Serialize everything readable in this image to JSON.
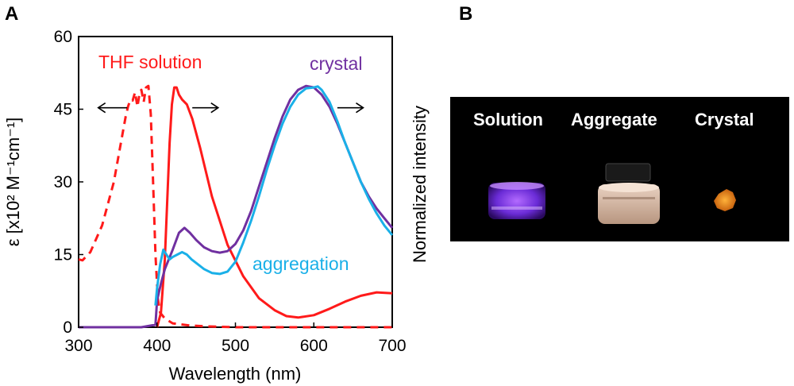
{
  "panels": {
    "a": "A",
    "b": "B"
  },
  "chart_data": {
    "type": "line",
    "xlabel": "Wavelength (nm)",
    "ylabel_left": "ε [x10² M⁻¹cm⁻¹]",
    "ylabel_right": "Normalized intensity",
    "xlim": [
      300,
      700
    ],
    "ylim": [
      0,
      60
    ],
    "xticks": [
      300,
      400,
      500,
      600,
      700
    ],
    "yticks": [
      0,
      15,
      30,
      45,
      60
    ],
    "grid": false,
    "series": [
      {
        "name": "THF solution",
        "style": "dashed",
        "axis": "left",
        "color": "#ff1a1a",
        "x": [
          300,
          305,
          315,
          330,
          345,
          355,
          360,
          363,
          366,
          369,
          372,
          375,
          378,
          380,
          383,
          386,
          389,
          392,
          395,
          398,
          401,
          404,
          410,
          420,
          440,
          460,
          480,
          500,
          700
        ],
        "y": [
          14,
          13.8,
          15.5,
          21,
          30,
          39,
          43.5,
          45.5,
          47,
          46.8,
          48.5,
          45.5,
          48.5,
          49,
          46.5,
          49.5,
          49.8,
          44,
          30,
          15,
          6,
          3,
          1.8,
          0.8,
          0.4,
          0.2,
          0.1,
          0,
          0
        ]
      },
      {
        "name": "THF solution",
        "style": "solid",
        "axis": "right",
        "color": "#ff1a1a",
        "x": [
          400,
          405,
          410,
          413,
          416,
          419,
          422,
          425,
          428,
          432,
          438,
          445,
          455,
          470,
          490,
          510,
          530,
          550,
          565,
          580,
          600,
          620,
          640,
          660,
          680,
          700
        ],
        "y": [
          0,
          3,
          14,
          26,
          38,
          46,
          49.5,
          49.5,
          48,
          47,
          46,
          43,
          37,
          27,
          17,
          10.5,
          6,
          3.5,
          2.3,
          2,
          2.5,
          3.8,
          5.3,
          6.5,
          7.2,
          7
        ]
      },
      {
        "name": "crystal",
        "style": "solid",
        "axis": "right",
        "color": "#7030a0",
        "x": [
          300,
          380,
          398,
          400,
          405,
          410,
          420,
          428,
          435,
          442,
          450,
          460,
          470,
          480,
          490,
          500,
          510,
          520,
          530,
          540,
          550,
          560,
          570,
          580,
          590,
          600,
          610,
          620,
          630,
          640,
          650,
          660,
          670,
          680,
          690,
          700
        ],
        "y": [
          0,
          0,
          0.5,
          5.5,
          9,
          12,
          16,
          19.5,
          20.5,
          19.5,
          18,
          16.5,
          15.7,
          15.4,
          15.7,
          17.2,
          20,
          24,
          29,
          34,
          39,
          43.5,
          47,
          49,
          49.8,
          49.5,
          48,
          45.5,
          42,
          38,
          34,
          30,
          27,
          24.5,
          22.5,
          20.5
        ]
      },
      {
        "name": "aggregation",
        "style": "solid",
        "axis": "right",
        "color": "#1ab0e8",
        "x": [
          398,
          400,
          404,
          408,
          412,
          416,
          420,
          426,
          432,
          438,
          444,
          452,
          460,
          470,
          480,
          490,
          500,
          510,
          520,
          530,
          540,
          550,
          560,
          570,
          580,
          590,
          600,
          605,
          610,
          620,
          630,
          640,
          650,
          660,
          670,
          680,
          690,
          700
        ],
        "y": [
          4.5,
          8,
          13,
          16,
          15,
          14,
          14.5,
          15,
          15.5,
          15,
          14,
          13,
          12,
          11.2,
          11,
          11.5,
          13.5,
          17.5,
          22,
          27,
          32.5,
          37.5,
          42,
          45.5,
          48,
          49.3,
          49.5,
          49.7,
          49,
          46.5,
          42.5,
          38,
          34,
          30,
          26.5,
          23.5,
          21,
          19
        ]
      }
    ],
    "annotations": [
      "THF solution",
      "crystal",
      "aggregation"
    ]
  },
  "photo": {
    "labels": [
      "Solution",
      "Aggregate",
      "Crystal"
    ]
  }
}
